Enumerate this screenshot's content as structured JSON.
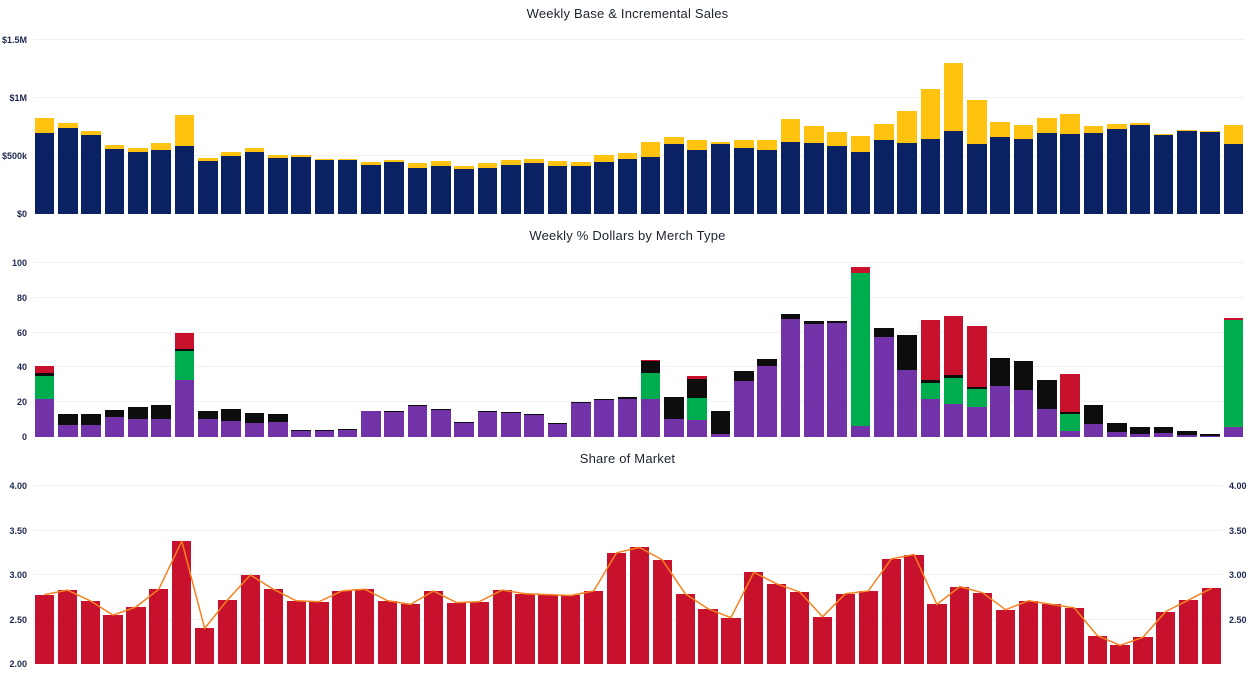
{
  "page": {
    "background": "#ffffff"
  },
  "chart_data": [
    {
      "id": "sales",
      "type": "bar",
      "subtype": "stacked-vertical",
      "title": "Weekly Base & Incremental Sales",
      "xlabel": "",
      "ylabel": "",
      "unit": "USD thousands",
      "ylim": [
        0,
        1500
      ],
      "grid": true,
      "legend": "none",
      "x_tick_labels": "none (52 weekly bars, unlabeled)",
      "yticks": [
        {
          "label": "$1.5M",
          "value": 1500
        },
        {
          "label": "$1M",
          "value": 1000
        },
        {
          "label": "$500k",
          "value": 500
        },
        {
          "label": "$0",
          "value": 0
        }
      ],
      "right_axis": false,
      "series": [
        {
          "name": "Base",
          "color": "#0a2263",
          "values": [
            700,
            740,
            685,
            560,
            535,
            550,
            585,
            455,
            500,
            535,
            480,
            490,
            465,
            465,
            420,
            450,
            400,
            415,
            390,
            395,
            420,
            440,
            410,
            410,
            450,
            475,
            495,
            605,
            555,
            605,
            570,
            555,
            625,
            615,
            585,
            535,
            635,
            610,
            645,
            715,
            600,
            660,
            650,
            700,
            690,
            700,
            735,
            770,
            680,
            720,
            705,
            600
          ]
        },
        {
          "name": "Incremental",
          "color": "#ffc20e",
          "values": [
            130,
            45,
            35,
            35,
            35,
            60,
            270,
            25,
            35,
            35,
            25,
            15,
            10,
            10,
            25,
            15,
            40,
            40,
            25,
            45,
            45,
            35,
            45,
            35,
            60,
            50,
            130,
            60,
            85,
            15,
            70,
            80,
            195,
            140,
            120,
            140,
            145,
            275,
            435,
            590,
            385,
            130,
            120,
            130,
            175,
            60,
            40,
            12,
            8,
            8,
            8,
            170
          ]
        }
      ]
    },
    {
      "id": "merch",
      "type": "bar",
      "subtype": "stacked-vertical",
      "title": "Weekly % Dollars by Merch Type",
      "xlabel": "",
      "ylabel": "",
      "unit": "percent",
      "ylim": [
        0,
        100
      ],
      "grid": true,
      "legend": "none",
      "x_tick_labels": "none (52 weekly bars, unlabeled)",
      "yticks": [
        {
          "label": "100",
          "value": 100
        },
        {
          "label": "80",
          "value": 80
        },
        {
          "label": "60",
          "value": 60
        },
        {
          "label": "40",
          "value": 40
        },
        {
          "label": "20",
          "value": 20
        },
        {
          "label": "0",
          "value": 0
        }
      ],
      "right_axis": false,
      "series": [
        {
          "name": "merch-type-purple",
          "color": "#7333a8",
          "values": [
            22,
            7,
            7,
            11.5,
            10.5,
            10.5,
            33,
            10.5,
            9,
            8,
            8.5,
            3.5,
            3.5,
            4,
            15,
            14.5,
            18,
            15.5,
            8,
            14.5,
            14,
            12.5,
            7.5,
            19.5,
            21.5,
            22,
            22,
            10.5,
            9.5,
            1.5,
            32,
            41,
            68,
            65,
            65.5,
            6.5,
            57.5,
            38.5,
            22,
            19,
            17,
            29.5,
            27,
            16,
            3.5,
            7.5,
            3,
            2,
            2.5,
            1,
            0.5,
            6
          ]
        },
        {
          "name": "merch-type-green",
          "color": "#00ad4e",
          "values": [
            13,
            0,
            0,
            0,
            0,
            0,
            16.5,
            0,
            0,
            0,
            0,
            0,
            0,
            0,
            0,
            0,
            0,
            0,
            0,
            0,
            0,
            0,
            0,
            0,
            0,
            0,
            15,
            0,
            13,
            0,
            0,
            0,
            0,
            0,
            0,
            88,
            0,
            0,
            9,
            15,
            10.5,
            0,
            0,
            0,
            9.5,
            0,
            0,
            0,
            0,
            0,
            0,
            61
          ]
        },
        {
          "name": "merch-type-black",
          "color": "#0d0d0d",
          "values": [
            2,
            6.5,
            6.5,
            4,
            7,
            8,
            1,
            4.5,
            7,
            6,
            5,
            0.5,
            0.5,
            0.5,
            0,
            0.5,
            0.5,
            0.5,
            0.5,
            0.5,
            0.5,
            0.5,
            0.5,
            0.5,
            0.5,
            1,
            6.5,
            12.5,
            11,
            13.5,
            6,
            4,
            2.5,
            1.5,
            1,
            0,
            5,
            20,
            2,
            1.5,
            1,
            16,
            16.5,
            17,
            1.5,
            11,
            5,
            3.5,
            3,
            2.5,
            1.5,
            0
          ]
        },
        {
          "name": "merch-type-red",
          "color": "#c8112c",
          "values": [
            4,
            0,
            0,
            0,
            0,
            0,
            9.5,
            0,
            0,
            0,
            0,
            0,
            0,
            0,
            0,
            0,
            0,
            0,
            0,
            0,
            0,
            0,
            0,
            0,
            0,
            0,
            1,
            0,
            1.5,
            0,
            0,
            0,
            0,
            0,
            0,
            3,
            0,
            0,
            34.5,
            34,
            35.5,
            0,
            0,
            0,
            21.5,
            0,
            0,
            0,
            0,
            0,
            0,
            1.5
          ]
        }
      ]
    },
    {
      "id": "som",
      "type": "bar",
      "subtype": "bar-with-line-overlay",
      "title": "Share of Market",
      "xlabel": "",
      "ylabel": "",
      "unit": "share points",
      "ylim": [
        2.0,
        4.0
      ],
      "grid": true,
      "legend": "none",
      "x_tick_labels": "none (52 weekly bars, unlabeled)",
      "yticks": [
        {
          "label": "4.00",
          "value": 4.0
        },
        {
          "label": "3.50",
          "value": 3.5
        },
        {
          "label": "3.00",
          "value": 3.0
        },
        {
          "label": "2.50",
          "value": 2.5
        },
        {
          "label": "2.00",
          "value": 2.0
        }
      ],
      "right_axis": true,
      "yticks_right": [
        {
          "label": "4.00",
          "value": 4.0
        },
        {
          "label": "3.50",
          "value": 3.5
        },
        {
          "label": "3.00",
          "value": 3.0
        },
        {
          "label": "2.50",
          "value": 2.5
        }
      ],
      "series": [
        {
          "name": "Share of Market",
          "color": "#c8112c",
          "values": [
            2.78,
            2.83,
            2.71,
            2.55,
            2.64,
            2.84,
            3.38,
            2.4,
            2.72,
            3.0,
            2.84,
            2.71,
            2.7,
            2.82,
            2.84,
            2.71,
            2.67,
            2.82,
            2.69,
            2.7,
            2.83,
            2.79,
            2.78,
            2.77,
            2.82,
            3.25,
            3.31,
            3.17,
            2.79,
            2.62,
            2.52,
            3.03,
            2.9,
            2.81,
            2.53,
            2.79,
            2.82,
            3.18,
            3.23,
            2.67,
            2.87,
            2.8,
            2.61,
            2.71,
            2.67,
            2.63,
            2.32,
            2.21,
            2.3,
            2.59,
            2.72,
            2.85
          ]
        }
      ],
      "line": {
        "name": "Share of Market trend line",
        "color": "#f58220",
        "values": [
          2.78,
          2.83,
          2.71,
          2.55,
          2.64,
          2.84,
          3.38,
          2.4,
          2.72,
          3.0,
          2.84,
          2.71,
          2.7,
          2.82,
          2.84,
          2.71,
          2.67,
          2.82,
          2.69,
          2.7,
          2.83,
          2.79,
          2.78,
          2.77,
          2.82,
          3.25,
          3.31,
          3.17,
          2.79,
          2.62,
          2.52,
          3.03,
          2.9,
          2.81,
          2.53,
          2.79,
          2.82,
          3.18,
          3.23,
          2.67,
          2.87,
          2.8,
          2.61,
          2.71,
          2.67,
          2.63,
          2.32,
          2.21,
          2.3,
          2.59,
          2.72,
          2.85
        ]
      }
    }
  ]
}
